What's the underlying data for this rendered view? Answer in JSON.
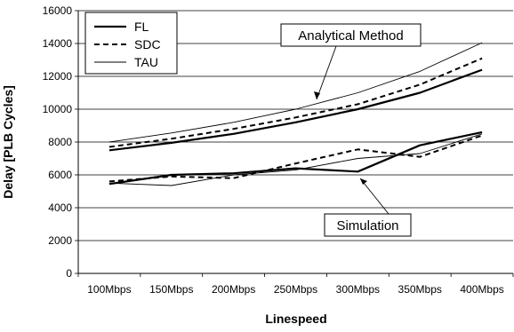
{
  "chart_data": {
    "type": "line",
    "title": "",
    "xlabel": "Linespeed",
    "ylabel": "Delay [PLB Cycles]",
    "categories": [
      "100Mbps",
      "150Mbps",
      "200Mbps",
      "250Mbps",
      "300Mbps",
      "350Mbps",
      "400Mbps"
    ],
    "ylim": [
      0,
      16000
    ],
    "yticks": [
      0,
      2000,
      4000,
      6000,
      8000,
      10000,
      12000,
      14000,
      16000
    ],
    "grid": "horizontal",
    "legend": {
      "position": "top-left",
      "entries": [
        {
          "label": "FL",
          "style": "thick-solid"
        },
        {
          "label": "SDC",
          "style": "dashed"
        },
        {
          "label": "TAU",
          "style": "thin-solid"
        }
      ]
    },
    "analytical": [
      {
        "name": "FL",
        "style": "thick-solid",
        "values": [
          7500,
          7950,
          8500,
          9200,
          10000,
          11000,
          12400
        ]
      },
      {
        "name": "SDC",
        "style": "dashed",
        "values": [
          7700,
          8200,
          8800,
          9500,
          10300,
          11500,
          13100
        ]
      },
      {
        "name": "TAU",
        "style": "thin-solid",
        "values": [
          8000,
          8550,
          9200,
          10000,
          11000,
          12300,
          14050
        ]
      }
    ],
    "simulation": [
      {
        "name": "FL",
        "style": "thick-solid",
        "values": [
          5450,
          6000,
          6100,
          6400,
          6200,
          7800,
          8600
        ]
      },
      {
        "name": "SDC",
        "style": "dashed",
        "values": [
          5600,
          5900,
          5800,
          6700,
          7550,
          7100,
          8400
        ]
      },
      {
        "name": "TAU",
        "style": "thin-solid",
        "values": [
          5500,
          5350,
          6000,
          6300,
          7000,
          7300,
          8500
        ]
      }
    ],
    "annotations": [
      {
        "text": "Analytical Method",
        "points_to": "analytical"
      },
      {
        "text": "Simulation",
        "points_to": "simulation"
      }
    ]
  }
}
